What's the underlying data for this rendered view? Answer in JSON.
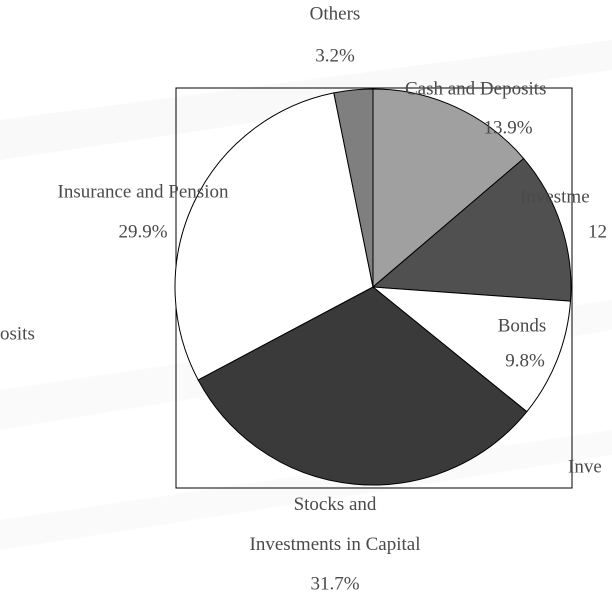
{
  "chart_data": {
    "type": "pie",
    "categories": [
      "Cash and Deposits",
      "Investme",
      "Bonds",
      "Stocks and\nInvestments in Capital",
      "Insurance and Pension",
      "Others"
    ],
    "values": [
      13.9,
      12.5,
      9.8,
      31.7,
      29.9,
      3.2
    ],
    "value_labels": [
      "13.9%",
      "12",
      "9.8%",
      "31.7%",
      "29.9%",
      "3.2%"
    ],
    "colors": [
      "#a0a0a0",
      "#505050",
      "#ffffff",
      "#3a3a3a",
      "#ffffff",
      "#7f7f7f"
    ],
    "annotations": [
      "osits",
      "Inve"
    ]
  }
}
